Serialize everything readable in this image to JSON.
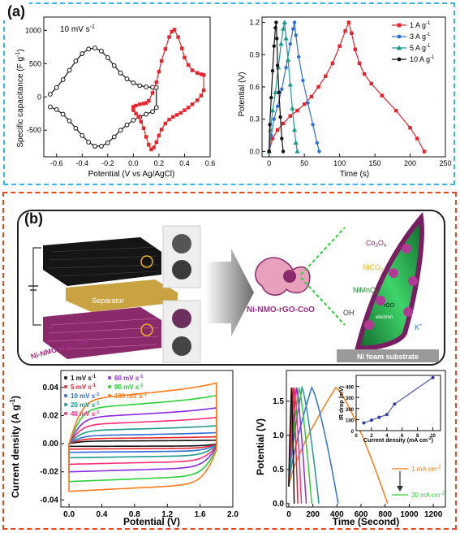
{
  "panel_a": {
    "label": "(a)",
    "cv": {
      "scan_rate": "10 mV s",
      "scan_rate_sup": "-1",
      "xlabel": "Potential (V vs Ag/AgCl)",
      "ylabel": "Specific capacitance (F g",
      "ylabel_sup": "-1",
      "ylabel_end": ")"
    },
    "gcd": {
      "xlabel": "Time (s)",
      "ylabel": "Potential (V)"
    }
  },
  "panel_b": {
    "label": "(b)",
    "schematic": {
      "separator": "Separator",
      "electrode": "Ni-NMO-rGO-CoO",
      "center_label": "Ni-NMO-rGO-CoO",
      "co3o4": "Co",
      "co3o4_sub1": "3",
      "co3o4_mid": "O",
      "co3o4_sub2": "4",
      "nico3": "NiCO",
      "nico3_sub": "3",
      "nimno3": "NiMnO",
      "nimno3_sub": "3",
      "rgo": "rGO",
      "electron": "electron",
      "oh": "OH",
      "oh_sup": "-",
      "k": "K",
      "k_sup": "+",
      "substrate": "Ni foam substrate"
    },
    "cv": {
      "xlabel": "Potential (V)",
      "ylabel": "Current density (A g",
      "ylabel_sup": "-1",
      "ylabel_end": ")"
    },
    "gcd": {
      "xlabel": "Time (Second)",
      "ylabel": "Potential (V)",
      "arrow_top": "1 mA cm",
      "arrow_top_sup": "-2",
      "arrow_bottom": "20 mA cm",
      "arrow_bottom_sup": "-2",
      "inset_xlabel": "Current density (mA cm",
      "inset_xlabel_sup": "-2",
      "inset_xlabel_end": ")",
      "inset_ylabel": "IR drop (mV)"
    }
  },
  "colors": {
    "panel_a_border": "#39b6e8",
    "panel_b_border": "#e8471f",
    "gcd_1": "#e8232b",
    "gcd_3": "#2f6fd6",
    "gcd_5": "#1d9a8e",
    "gcd_10": "#111111"
  },
  "chart_data": [
    {
      "id": "a_cv",
      "type": "line",
      "xlim": [
        -0.7,
        0.6
      ],
      "ylim": [
        -900,
        1200
      ],
      "xticks": [
        -0.6,
        -0.4,
        -0.2,
        0.0,
        0.2,
        0.4,
        0.6
      ],
      "yticks": [
        -500,
        0,
        500,
        1000
      ],
      "series": [
        {
          "color": "#111111",
          "marker": "circle-open",
          "x": [
            -0.65,
            -0.6,
            -0.55,
            -0.5,
            -0.45,
            -0.4,
            -0.35,
            -0.3,
            -0.25,
            -0.2,
            -0.15,
            -0.1,
            -0.05,
            0.0,
            0.05,
            0.1,
            0.15,
            0.18,
            0.18,
            0.15,
            0.1,
            0.05,
            0.0,
            -0.05,
            -0.1,
            -0.15,
            -0.2,
            -0.25,
            -0.3,
            -0.35,
            -0.4,
            -0.45,
            -0.5,
            -0.55,
            -0.6,
            -0.65
          ],
          "y": [
            40,
            140,
            260,
            400,
            540,
            650,
            720,
            735,
            690,
            590,
            470,
            360,
            270,
            210,
            170,
            150,
            145,
            140,
            -160,
            -220,
            -260,
            -300,
            -350,
            -420,
            -500,
            -600,
            -690,
            -740,
            -740,
            -680,
            -580,
            -470,
            -360,
            -260,
            -190,
            -150
          ]
        },
        {
          "color": "#e8232b",
          "marker": "square",
          "x": [
            0.0,
            0.02,
            0.05,
            0.08,
            0.1,
            0.12,
            0.15,
            0.18,
            0.2,
            0.22,
            0.25,
            0.28,
            0.3,
            0.32,
            0.35,
            0.38,
            0.4,
            0.43,
            0.46,
            0.5,
            0.53,
            0.55,
            0.55,
            0.53,
            0.5,
            0.46,
            0.43,
            0.4,
            0.37,
            0.34,
            0.31,
            0.28,
            0.25,
            0.22,
            0.2,
            0.18,
            0.16,
            0.14,
            0.12,
            0.1,
            0.08,
            0.06,
            0.04,
            0.02,
            0.0,
            0.0
          ],
          "y": [
            -150,
            -130,
            -110,
            -100,
            -90,
            -60,
            60,
            220,
            380,
            540,
            720,
            900,
            980,
            1010,
            900,
            730,
            590,
            480,
            400,
            360,
            340,
            330,
            100,
            20,
            -50,
            -110,
            -160,
            -200,
            -240,
            -270,
            -300,
            -340,
            -400,
            -490,
            -580,
            -680,
            -760,
            -790,
            -720,
            -600,
            -470,
            -370,
            -300,
            -250,
            -200,
            -150
          ]
        }
      ]
    },
    {
      "id": "a_gcd",
      "type": "line",
      "xlim": [
        -10,
        250
      ],
      "ylim": [
        -0.05,
        1.25
      ],
      "xticks": [
        0,
        50,
        100,
        150,
        200,
        250
      ],
      "yticks": [
        0.0,
        0.3,
        0.6,
        0.9,
        1.2
      ],
      "legend": "top-right",
      "series": [
        {
          "name": "1 A g",
          "name_sup": "-1",
          "color": "#e8232b",
          "marker": "square",
          "x": [
            0,
            5,
            12,
            20,
            30,
            40,
            50,
            60,
            70,
            80,
            90,
            100,
            108,
            113,
            117,
            122,
            128,
            135,
            145,
            160,
            180,
            200,
            210,
            220
          ],
          "y": [
            0,
            0.12,
            0.2,
            0.26,
            0.33,
            0.38,
            0.44,
            0.51,
            0.6,
            0.7,
            0.82,
            0.98,
            1.12,
            1.2,
            1.1,
            0.95,
            0.82,
            0.72,
            0.63,
            0.52,
            0.38,
            0.22,
            0.12,
            0.0
          ]
        },
        {
          "name": "3 A g",
          "name_sup": "-1",
          "color": "#2f6fd6",
          "marker": "circle",
          "x": [
            0,
            3,
            7,
            12,
            18,
            24,
            30,
            34,
            36,
            38,
            42,
            48,
            55,
            62,
            68,
            71
          ],
          "y": [
            0,
            0.15,
            0.3,
            0.42,
            0.58,
            0.78,
            1.0,
            1.14,
            1.2,
            1.08,
            0.88,
            0.66,
            0.45,
            0.25,
            0.08,
            0.0
          ]
        },
        {
          "name": "5 A g",
          "name_sup": "-1",
          "color": "#1d9a8e",
          "marker": "triangle",
          "x": [
            0,
            2,
            5,
            9,
            13,
            17,
            20,
            22,
            24,
            27,
            30,
            33,
            36,
            38,
            40
          ],
          "y": [
            0,
            0.2,
            0.38,
            0.55,
            0.78,
            1.0,
            1.14,
            1.2,
            1.05,
            0.85,
            0.62,
            0.4,
            0.2,
            0.08,
            0.0
          ]
        },
        {
          "name": "10 A g",
          "name_sup": "-1",
          "color": "#111111",
          "marker": "circle",
          "x": [
            0,
            1,
            3,
            5,
            7,
            9,
            10,
            11,
            12,
            14,
            16,
            18,
            20
          ],
          "y": [
            0,
            0.25,
            0.5,
            0.75,
            0.98,
            1.15,
            1.2,
            1.05,
            0.8,
            0.55,
            0.32,
            0.12,
            0.0
          ]
        }
      ]
    },
    {
      "id": "b_cv",
      "type": "line",
      "xlim": [
        -0.1,
        2.0
      ],
      "ylim": [
        -0.045,
        0.052
      ],
      "xticks": [
        0.0,
        0.4,
        0.8,
        1.2,
        1.6,
        2.0
      ],
      "yticks": [
        -0.04,
        -0.02,
        0.0,
        0.02,
        0.04
      ],
      "legend": "top-left",
      "series": [
        {
          "name": "1 mV s",
          "name_sup": "-1",
          "color": "#111111",
          "amp": 0.05
        },
        {
          "name": "5 mV s",
          "name_sup": "-1",
          "color": "#e8232b",
          "amp": 0.1
        },
        {
          "name": "10 mV s",
          "name_sup": "-1",
          "color": "#2f6fd6",
          "amp": 0.16
        },
        {
          "name": "20 mV s",
          "name_sup": "-1",
          "color": "#1d9a8e",
          "amp": 0.26
        },
        {
          "name": "40 mV s",
          "name_sup": "-1",
          "color": "#ff2d7a",
          "amp": 0.38
        },
        {
          "name": "60 mV s",
          "name_sup": "-1",
          "color": "#8a2be2",
          "amp": 0.52
        },
        {
          "name": "80 mV s",
          "name_sup": "-1",
          "color": "#2ccf3a",
          "amp": 0.7
        },
        {
          "name": "100 mV s",
          "name_sup": "-1",
          "color": "#ff7a1a",
          "amp": 0.88
        }
      ]
    },
    {
      "id": "b_gcd",
      "type": "line",
      "xlim": [
        -20,
        1300
      ],
      "ylim": [
        -0.05,
        1.95
      ],
      "xticks": [
        0,
        200,
        400,
        600,
        800,
        1000,
        1200
      ],
      "yticks": [
        0.0,
        0.5,
        1.0,
        1.5
      ],
      "series": [
        {
          "color": "#ff7a1a",
          "charge_end": 390,
          "discharge_end": 820
        },
        {
          "color": "#2f6fd6",
          "charge_end": 190,
          "discharge_end": 410
        },
        {
          "color": "#1d9a8e",
          "charge_end": 110,
          "discharge_end": 250
        },
        {
          "color": "#2ccf3a",
          "charge_end": 85,
          "discharge_end": 190
        },
        {
          "color": "#8a2be2",
          "charge_end": 65,
          "discharge_end": 145
        },
        {
          "color": "#ff2d7a",
          "charge_end": 48,
          "discharge_end": 105
        },
        {
          "color": "#e8232b",
          "charge_end": 35,
          "discharge_end": 75
        },
        {
          "color": "#111111",
          "charge_end": 22,
          "discharge_end": 45
        }
      ]
    },
    {
      "id": "b_gcd_inset",
      "type": "line",
      "xlim": [
        0,
        11
      ],
      "ylim": [
        0,
        500
      ],
      "xticks": [
        0,
        2,
        4,
        6,
        8,
        10
      ],
      "yticks": [
        0,
        100,
        200,
        300,
        400
      ],
      "series": [
        {
          "color": "#2f3aa8",
          "x": [
            1,
            2,
            3,
            4,
            5,
            10
          ],
          "y": [
            70,
            95,
            120,
            145,
            240,
            480
          ]
        }
      ]
    }
  ]
}
